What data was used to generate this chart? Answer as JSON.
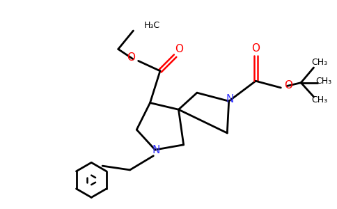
{
  "bg_color": "#ffffff",
  "bond_color": "#000000",
  "nitrogen_color": "#3333ff",
  "oxygen_color": "#ff0000",
  "line_width": 2.0,
  "figsize": [
    4.84,
    3.0
  ],
  "dpi": 100,
  "xlim": [
    0,
    10
  ],
  "ylim": [
    0,
    6.2
  ]
}
